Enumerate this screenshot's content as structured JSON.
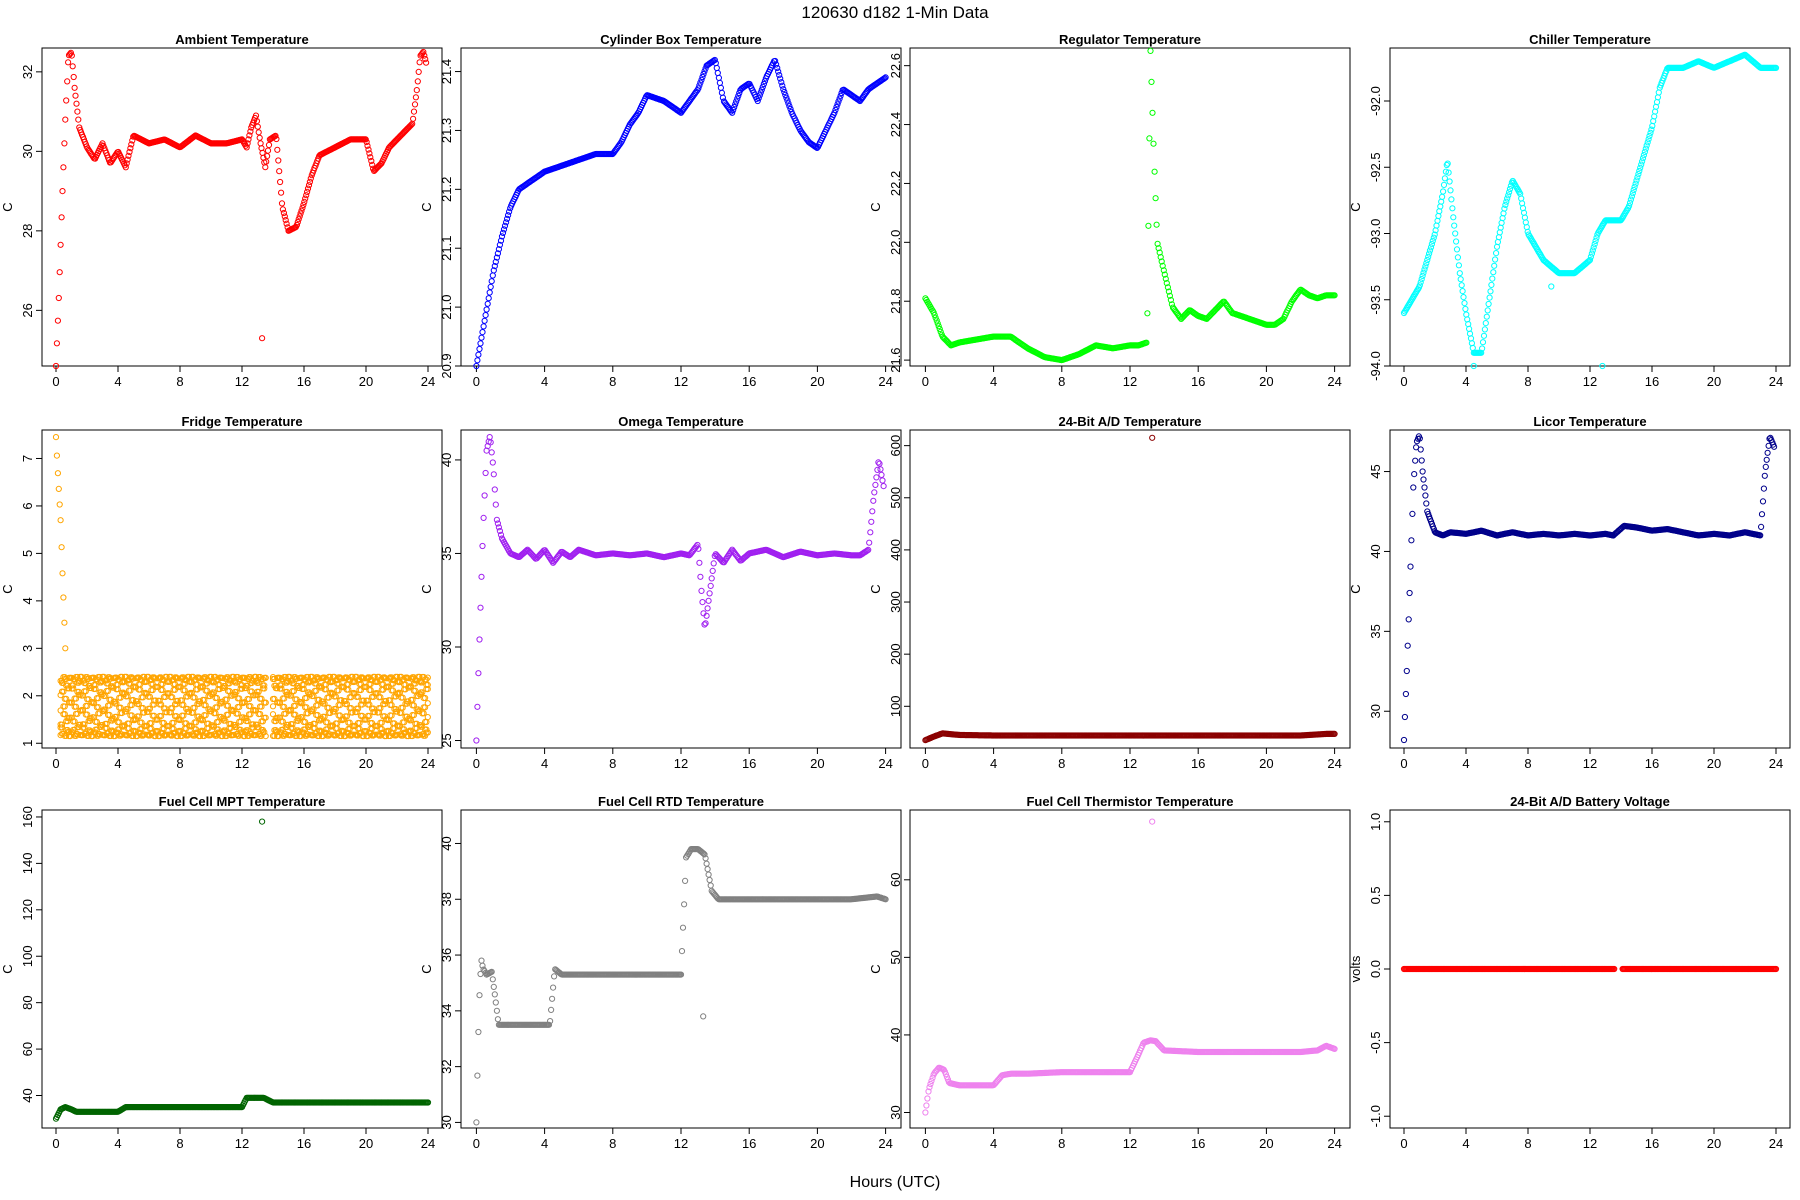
{
  "figure": {
    "title": "120630    d182    1-Min Data",
    "xlabel": "Hours (UTC)"
  },
  "chart_data": [
    {
      "id": "ambient",
      "type": "scatter",
      "title": "Ambient Temperature",
      "ylabel": "C",
      "color": "#ff0000",
      "xlim": [
        0,
        24
      ],
      "ylim": [
        24.6,
        32.6
      ],
      "xticks": [
        0,
        4,
        8,
        12,
        16,
        20,
        24
      ],
      "yticks": [
        26,
        28,
        30,
        32
      ],
      "x": [
        0,
        0.2,
        0.4,
        0.6,
        0.8,
        1.0,
        1.2,
        1.5,
        2,
        2.5,
        3,
        3.5,
        4,
        4.5,
        5,
        6,
        7,
        8,
        9,
        10,
        11,
        12,
        12.3,
        12.6,
        12.9,
        13.2,
        13.5,
        13.8,
        14.2,
        14.6,
        15,
        15.5,
        16,
        16.5,
        17,
        18,
        19,
        20,
        20.5,
        21,
        21.5,
        22,
        22.5,
        23,
        23.3,
        23.5,
        23.7,
        23.9
      ],
      "y": [
        24.6,
        26.5,
        28.8,
        30.8,
        32.4,
        32.5,
        31.6,
        30.6,
        30.1,
        29.8,
        30.2,
        29.7,
        30.0,
        29.6,
        30.4,
        30.2,
        30.3,
        30.1,
        30.4,
        30.2,
        30.2,
        30.3,
        30.1,
        30.6,
        30.9,
        30.2,
        29.6,
        30.3,
        30.4,
        28.6,
        28.0,
        28.1,
        28.7,
        29.4,
        29.9,
        30.1,
        30.3,
        30.3,
        29.5,
        29.7,
        30.1,
        30.3,
        30.5,
        30.7,
        31.6,
        32.4,
        32.5,
        32.2
      ],
      "outliers": [
        {
          "x": 13.3,
          "y": 25.3
        }
      ]
    },
    {
      "id": "cylinder",
      "type": "scatter",
      "title": "Cylinder Box Temperature",
      "ylabel": "C",
      "color": "#0000ff",
      "xlim": [
        0,
        24
      ],
      "ylim": [
        20.9,
        21.44
      ],
      "xticks": [
        0,
        4,
        8,
        12,
        16,
        20,
        24
      ],
      "yticks": [
        20.9,
        21.0,
        21.1,
        21.2,
        21.3,
        21.4
      ],
      "x": [
        0,
        0.5,
        1,
        1.5,
        2,
        2.5,
        3,
        3.5,
        4,
        5,
        6,
        7,
        8,
        8.5,
        9,
        9.5,
        10,
        11,
        12,
        12.5,
        13,
        13.5,
        14,
        14.5,
        15,
        15.5,
        16,
        16.5,
        17,
        17.5,
        18,
        18.5,
        19,
        19.5,
        20,
        20.5,
        21,
        21.5,
        22,
        22.5,
        23,
        23.5,
        24
      ],
      "y": [
        20.9,
        20.98,
        21.06,
        21.12,
        21.17,
        21.2,
        21.21,
        21.22,
        21.23,
        21.24,
        21.25,
        21.26,
        21.26,
        21.28,
        21.31,
        21.33,
        21.36,
        21.35,
        21.33,
        21.35,
        21.37,
        21.41,
        21.42,
        21.35,
        21.33,
        21.37,
        21.38,
        21.35,
        21.39,
        21.42,
        21.37,
        21.33,
        21.3,
        21.28,
        21.27,
        21.3,
        21.33,
        21.37,
        21.36,
        21.35,
        21.37,
        21.38,
        21.39
      ]
    },
    {
      "id": "regulator",
      "type": "scatter",
      "title": "Regulator Temperature",
      "ylabel": "C",
      "color": "#00ff00",
      "xlim": [
        0,
        24
      ],
      "ylim": [
        21.58,
        22.66
      ],
      "xticks": [
        0,
        4,
        8,
        12,
        16,
        20,
        24
      ],
      "yticks": [
        21.6,
        21.8,
        22.0,
        22.2,
        22.4,
        22.6
      ],
      "x": [
        0,
        0.5,
        1,
        1.5,
        2,
        3,
        4,
        5,
        6,
        7,
        8,
        9,
        10,
        11,
        12,
        12.5,
        13,
        13.2,
        13.4,
        13.6,
        14,
        14.5,
        15,
        15.5,
        16,
        16.5,
        17,
        17.5,
        18,
        18.5,
        19,
        19.5,
        20,
        20.5,
        21,
        21.5,
        22,
        22.5,
        23,
        23.5,
        24
      ],
      "y": [
        21.81,
        21.76,
        21.68,
        21.65,
        21.66,
        21.67,
        21.68,
        21.68,
        21.64,
        21.61,
        21.6,
        21.62,
        21.65,
        21.64,
        21.65,
        21.65,
        21.66,
        22.65,
        22.3,
        22.0,
        21.9,
        21.78,
        21.74,
        21.77,
        21.75,
        21.74,
        21.77,
        21.8,
        21.76,
        21.75,
        21.74,
        21.73,
        21.72,
        21.72,
        21.74,
        21.8,
        21.84,
        21.82,
        21.81,
        21.82,
        21.82
      ]
    },
    {
      "id": "chiller",
      "type": "scatter",
      "title": "Chiller Temperature",
      "ylabel": "C",
      "color": "#00ffff",
      "xlim": [
        0,
        24
      ],
      "ylim": [
        -94.0,
        -91.6
      ],
      "xticks": [
        0,
        4,
        8,
        12,
        16,
        20,
        24
      ],
      "yticks": [
        -94.0,
        -93.5,
        -93.0,
        -92.5,
        -92.0
      ],
      "x": [
        0,
        0.5,
        1,
        1.5,
        2,
        2.5,
        2.8,
        3.2,
        3.6,
        4,
        4.5,
        5,
        5.5,
        6,
        6.5,
        7,
        7.5,
        8,
        8.5,
        9,
        10,
        11,
        12,
        12.5,
        13,
        14,
        14.5,
        15,
        15.5,
        16,
        16.5,
        17,
        17.5,
        18,
        19,
        20,
        21,
        22,
        23,
        24
      ],
      "y": [
        -93.6,
        -93.5,
        -93.4,
        -93.2,
        -93.0,
        -92.7,
        -92.45,
        -92.9,
        -93.3,
        -93.6,
        -93.9,
        -93.9,
        -93.5,
        -93.1,
        -92.8,
        -92.6,
        -92.7,
        -93.0,
        -93.1,
        -93.2,
        -93.3,
        -93.3,
        -93.2,
        -93.0,
        -92.9,
        -92.9,
        -92.8,
        -92.6,
        -92.4,
        -92.2,
        -91.9,
        -91.75,
        -91.75,
        -91.75,
        -91.7,
        -91.75,
        -91.7,
        -91.65,
        -91.75,
        -91.75
      ],
      "outliers": [
        {
          "x": 4.5,
          "y": -94.0
        },
        {
          "x": 9.5,
          "y": -93.4
        },
        {
          "x": 12.8,
          "y": -94.0
        }
      ]
    },
    {
      "id": "fridge",
      "type": "scatter",
      "title": "Fridge Temperature",
      "ylabel": "C",
      "color": "#ffa500",
      "xlim": [
        0,
        24
      ],
      "ylim": [
        0.9,
        7.6
      ],
      "xticks": [
        0,
        4,
        8,
        12,
        16,
        20,
        24
      ],
      "yticks": [
        1,
        2,
        3,
        4,
        5,
        6,
        7
      ],
      "x": [
        0,
        0.1,
        0.2,
        0.3,
        0.4,
        0.5,
        0.6
      ],
      "y": [
        7.45,
        6.8,
        6.25,
        5.7,
        4.75,
        3.9,
        3.0
      ],
      "band": {
        "low": 1.15,
        "high": 2.4,
        "segments": [
          [
            0.3,
            13.6
          ],
          [
            14.0,
            24.0
          ]
        ]
      }
    },
    {
      "id": "omega",
      "type": "scatter",
      "title": "Omega Temperature",
      "ylabel": "C",
      "color": "#a020f0",
      "xlim": [
        0,
        24
      ],
      "ylim": [
        24.6,
        41.6
      ],
      "xticks": [
        0,
        4,
        8,
        12,
        16,
        20,
        24
      ],
      "yticks": [
        25,
        30,
        35,
        40
      ],
      "x": [
        0,
        0.2,
        0.4,
        0.6,
        0.8,
        1.0,
        1.2,
        1.5,
        2,
        2.5,
        3,
        3.5,
        4,
        4.5,
        5,
        5.5,
        6,
        7,
        8,
        9,
        10,
        11,
        12,
        12.5,
        13,
        13.2,
        13.4,
        14,
        14.5,
        15,
        15.5,
        16,
        17,
        18,
        19,
        20,
        21,
        22,
        22.5,
        23,
        23.3,
        23.6,
        23.9
      ],
      "y": [
        25.0,
        31.0,
        36.5,
        40.5,
        41.3,
        39.5,
        36.8,
        35.8,
        35.0,
        34.8,
        35.2,
        34.7,
        35.2,
        34.5,
        35.1,
        34.8,
        35.2,
        34.9,
        35.0,
        34.9,
        35.0,
        34.8,
        35.0,
        34.9,
        35.5,
        33.0,
        31.0,
        35.0,
        34.5,
        35.2,
        34.6,
        35.0,
        35.2,
        34.8,
        35.1,
        34.9,
        35.0,
        34.9,
        34.9,
        35.2,
        38.0,
        40.0,
        38.5
      ]
    },
    {
      "id": "ad24",
      "type": "scatter",
      "title": "24-Bit A/D Temperature",
      "ylabel": "C",
      "color": "#8b0000",
      "xlim": [
        0,
        24
      ],
      "ylim": [
        20,
        630
      ],
      "xticks": [
        0,
        4,
        8,
        12,
        16,
        20,
        24
      ],
      "yticks": [
        100,
        200,
        300,
        400,
        500,
        600
      ],
      "x": [
        0,
        0.5,
        1,
        2,
        4,
        6,
        8,
        10,
        12,
        13.5,
        14.2,
        16,
        18,
        20,
        22,
        23.5,
        24
      ],
      "y": [
        35,
        42,
        48,
        45,
        44,
        44,
        44,
        44,
        44,
        44,
        44,
        44,
        44,
        44,
        44,
        47,
        47
      ],
      "outliers": [
        {
          "x": 13.3,
          "y": 615
        }
      ]
    },
    {
      "id": "licor",
      "type": "scatter",
      "title": "Licor Temperature",
      "ylabel": "C",
      "color": "#00008b",
      "xlim": [
        0,
        24
      ],
      "ylim": [
        27.7,
        47.6
      ],
      "xticks": [
        0,
        4,
        8,
        12,
        16,
        20,
        24
      ],
      "yticks": [
        30,
        35,
        40,
        45
      ],
      "x": [
        0,
        0.2,
        0.4,
        0.6,
        0.8,
        1.0,
        1.2,
        1.5,
        2,
        2.5,
        3,
        4,
        5,
        6,
        7,
        8,
        9,
        10,
        11,
        12,
        13,
        13.5,
        14.2,
        15,
        16,
        17,
        18,
        19,
        20,
        21,
        22,
        23,
        23.3,
        23.6,
        23.9
      ],
      "y": [
        28.2,
        33.0,
        38.5,
        44.0,
        46.8,
        47.3,
        45.0,
        42.5,
        41.2,
        41.0,
        41.2,
        41.1,
        41.3,
        41.0,
        41.2,
        41.0,
        41.1,
        41.0,
        41.1,
        41.0,
        41.1,
        41.0,
        41.6,
        41.5,
        41.3,
        41.4,
        41.2,
        41.0,
        41.1,
        41.0,
        41.2,
        41.0,
        45.0,
        47.2,
        46.5
      ]
    },
    {
      "id": "mpt",
      "type": "scatter",
      "title": "Fuel Cell MPT Temperature",
      "ylabel": "C",
      "color": "#006400",
      "xlim": [
        0,
        24
      ],
      "ylim": [
        26,
        163
      ],
      "xticks": [
        0,
        4,
        8,
        12,
        16,
        20,
        24
      ],
      "yticks": [
        40,
        60,
        80,
        100,
        120,
        140,
        160
      ],
      "x": [
        0,
        0.3,
        0.6,
        1,
        1.3,
        2,
        3,
        4,
        4.5,
        6,
        8,
        10,
        12,
        12.3,
        12.6,
        13,
        13.4,
        14,
        16,
        18,
        20,
        22,
        23.5,
        24
      ],
      "y": [
        30,
        34,
        35,
        34,
        33,
        33,
        33,
        33,
        35,
        35,
        35,
        35,
        35,
        39,
        39,
        39,
        39,
        37,
        37,
        37,
        37,
        37,
        37,
        37
      ],
      "outliers": [
        {
          "x": 13.3,
          "y": 158
        }
      ]
    },
    {
      "id": "rtd",
      "type": "scatter",
      "title": "Fuel Cell RTD Temperature",
      "ylabel": "C",
      "color": "#808080",
      "xlim": [
        0,
        24
      ],
      "ylim": [
        29.8,
        41.2
      ],
      "xticks": [
        0,
        4,
        8,
        12,
        16,
        20,
        24
      ],
      "yticks": [
        30,
        32,
        34,
        36,
        38,
        40
      ],
      "x": [
        0,
        0.1,
        0.2,
        0.3,
        0.4,
        0.6,
        0.9,
        1.1,
        1.3,
        1.6,
        2,
        3,
        4,
        4.3,
        4.6,
        5,
        6,
        8,
        10,
        12,
        12.3,
        12.6,
        13,
        13.4,
        13.8,
        14.2,
        15,
        16,
        18,
        20,
        22,
        23.5,
        24
      ],
      "y": [
        30.0,
        32.8,
        35.0,
        35.8,
        35.5,
        35.3,
        35.4,
        34.5,
        33.5,
        33.5,
        33.5,
        33.5,
        33.5,
        33.5,
        35.5,
        35.3,
        35.3,
        35.3,
        35.3,
        35.3,
        39.5,
        39.8,
        39.8,
        39.6,
        38.3,
        38.0,
        38.0,
        38.0,
        38.0,
        38.0,
        38.0,
        38.1,
        38.0
      ],
      "outliers": [
        {
          "x": 13.3,
          "y": 33.8
        }
      ]
    },
    {
      "id": "thermistor",
      "type": "scatter",
      "title": "Fuel Cell Thermistor Temperature",
      "ylabel": "C",
      "color": "#ee82ee",
      "xlim": [
        0,
        24
      ],
      "ylim": [
        28,
        69
      ],
      "xticks": [
        0,
        4,
        8,
        12,
        16,
        20,
        24
      ],
      "yticks": [
        30,
        40,
        50,
        60
      ],
      "x": [
        0,
        0.2,
        0.5,
        0.8,
        1.1,
        1.4,
        2,
        3,
        4,
        4.5,
        5,
        6,
        8,
        10,
        12,
        12.5,
        12.8,
        13.2,
        13.5,
        14,
        16,
        18,
        20,
        22,
        23,
        23.5,
        24
      ],
      "y": [
        30,
        33,
        35,
        35.8,
        35.5,
        33.8,
        33.5,
        33.5,
        33.5,
        34.8,
        35.0,
        35.0,
        35.2,
        35.2,
        35.2,
        37.5,
        39.0,
        39.3,
        39.2,
        38.0,
        37.8,
        37.8,
        37.8,
        37.8,
        38.0,
        38.6,
        38.2
      ],
      "outliers": [
        {
          "x": 13.3,
          "y": 67.5
        }
      ]
    },
    {
      "id": "battery",
      "type": "scatter",
      "title": "24-Bit A/D Battery Voltage",
      "ylabel": "volts",
      "color": "#ff0000",
      "xlim": [
        0,
        24
      ],
      "ylim": [
        -1.08,
        1.08
      ],
      "xticks": [
        0,
        4,
        8,
        12,
        16,
        20,
        24
      ],
      "yticks": [
        -1.0,
        -0.5,
        0.0,
        0.5,
        1.0
      ],
      "x": [
        0,
        2,
        4,
        6,
        8,
        10,
        12,
        13.6,
        14.1,
        16,
        18,
        20,
        22,
        24
      ],
      "y": [
        0,
        0,
        0,
        0,
        0,
        0,
        0,
        0,
        0,
        0,
        0,
        0,
        0,
        0
      ],
      "gap": [
        13.6,
        14.1
      ]
    }
  ]
}
